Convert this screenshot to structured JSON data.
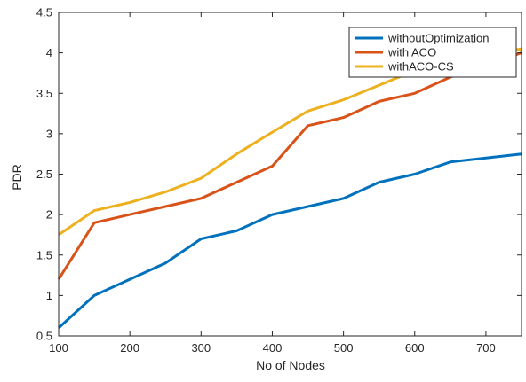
{
  "chart_data": {
    "type": "line",
    "title": "",
    "xlabel": "No of Nodes",
    "ylabel": "PDR",
    "xlim": [
      100,
      750
    ],
    "ylim": [
      0.5,
      4.5
    ],
    "xticks": [
      100,
      200,
      300,
      400,
      500,
      600,
      700
    ],
    "yticks": [
      0.5,
      1,
      1.5,
      2,
      2.5,
      3,
      3.5,
      4,
      4.5
    ],
    "xtick_labels": [
      "100",
      "200",
      "300",
      "400",
      "500",
      "600",
      "700"
    ],
    "ytick_labels": [
      "0.5",
      "1",
      "1.5",
      "2",
      "2.5",
      "3",
      "3.5",
      "4",
      "4.5"
    ],
    "grid": false,
    "legend_position": "top-right",
    "x": [
      100,
      150,
      200,
      250,
      300,
      350,
      400,
      450,
      500,
      550,
      600,
      650,
      700,
      750
    ],
    "series": [
      {
        "name": "withoutOptimization",
        "color": "#0072BD",
        "values": [
          0.6,
          1.0,
          1.2,
          1.4,
          1.7,
          1.8,
          2.0,
          2.1,
          2.2,
          2.4,
          2.5,
          2.65,
          2.7,
          2.75
        ]
      },
      {
        "name": "with ACO",
        "color": "#D95319",
        "values": [
          1.2,
          1.9,
          2.0,
          2.1,
          2.2,
          2.4,
          2.6,
          3.1,
          3.2,
          3.4,
          3.5,
          3.7,
          3.85,
          4.0
        ]
      },
      {
        "name": "withACO-CS",
        "color": "#EDB120",
        "values": [
          1.75,
          2.05,
          2.15,
          2.28,
          2.45,
          2.75,
          3.02,
          3.28,
          3.42,
          3.6,
          3.78,
          3.88,
          3.98,
          4.05
        ]
      }
    ]
  }
}
